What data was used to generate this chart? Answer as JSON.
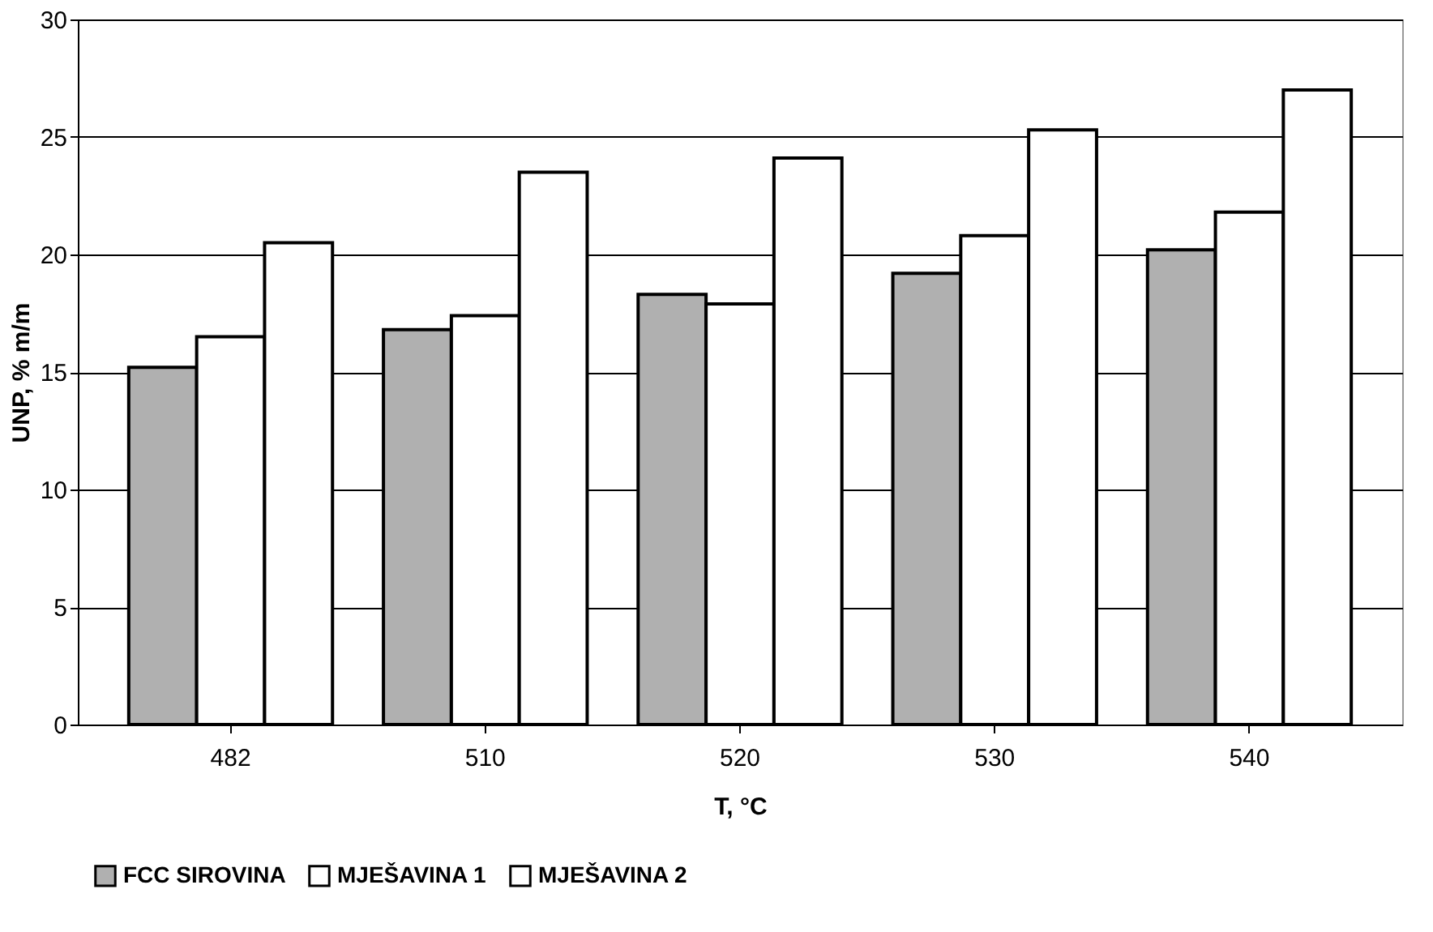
{
  "chart_data": {
    "type": "bar",
    "xlabel": "T, °C",
    "ylabel": "UNP, % m/m",
    "categories": [
      "482",
      "510",
      "520",
      "530",
      "540"
    ],
    "series": [
      {
        "name": "FCC SIROVINA",
        "color": "#b0b0b0",
        "values": [
          15.2,
          16.8,
          18.3,
          19.2,
          20.2
        ]
      },
      {
        "name": "MJEŠAVINA 1",
        "color": "#ffffff",
        "values": [
          16.5,
          17.4,
          17.9,
          20.8,
          21.8
        ]
      },
      {
        "name": "MJEŠAVINA 2",
        "color": "#ffffff",
        "values": [
          20.5,
          23.5,
          24.1,
          25.3,
          27.0
        ]
      }
    ],
    "ylim": [
      0,
      30
    ],
    "yticks": [
      0,
      5,
      10,
      15,
      20,
      25,
      30
    ],
    "grid": "y",
    "legend": "bottom"
  }
}
